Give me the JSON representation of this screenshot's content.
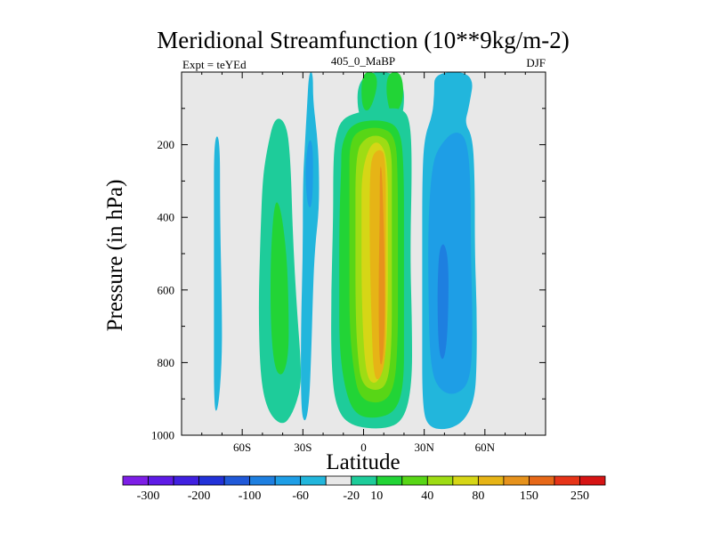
{
  "chart_data": {
    "type": "heatmap",
    "title": "Meridional Streamfunction (10**9kg/m-2)",
    "left_subtitle": "Expt = teYEd",
    "center_subtitle": "405_0_MaBP",
    "right_subtitle": "DJF",
    "xlabel": "Latitude",
    "ylabel": "Pressure (in hPa)",
    "xlim": [
      -90,
      90
    ],
    "ylim": [
      1000,
      0
    ],
    "x_ticks": [
      {
        "value": -60,
        "label": "60S"
      },
      {
        "value": -30,
        "label": "30S"
      },
      {
        "value": 0,
        "label": "0"
      },
      {
        "value": 30,
        "label": "30N"
      },
      {
        "value": 60,
        "label": "60N"
      }
    ],
    "y_ticks": [
      {
        "value": 200,
        "label": "200"
      },
      {
        "value": 400,
        "label": "400"
      },
      {
        "value": 600,
        "label": "600"
      },
      {
        "value": 800,
        "label": "800"
      },
      {
        "value": 1000,
        "label": "1000"
      }
    ],
    "background_color": "#e8e8e8",
    "colorbar": {
      "colors": [
        "#7d1ee6",
        "#5e1be6",
        "#4020e0",
        "#2232d8",
        "#2059d8",
        "#1e7fe0",
        "#1e9ee6",
        "#22b6dc",
        "#e8e8e8",
        "#1ecc9a",
        "#22d436",
        "#58d616",
        "#9edc14",
        "#d6d616",
        "#e6b416",
        "#e6921c",
        "#e66818",
        "#e63418",
        "#d61414"
      ],
      "labels": [
        {
          "after_index": 0,
          "label": "-300"
        },
        {
          "after_index": 2,
          "label": "-200"
        },
        {
          "after_index": 4,
          "label": "-100"
        },
        {
          "after_index": 6,
          "label": "-60"
        },
        {
          "after_index": 8,
          "label": "-20"
        },
        {
          "after_index": 9,
          "label": "10"
        },
        {
          "after_index": 11,
          "label": "40"
        },
        {
          "after_index": 13,
          "label": "80"
        },
        {
          "after_index": 15,
          "label": "150"
        },
        {
          "after_index": 17,
          "label": "250"
        }
      ]
    },
    "regions": [
      {
        "name": "band-70s",
        "level": -20,
        "color": "#22b6dc",
        "outline": [
          [
            -74,
            180
          ],
          [
            -71,
            175
          ],
          [
            -71,
            400
          ],
          [
            -70,
            650
          ],
          [
            -70,
            800
          ],
          [
            -72,
            935
          ],
          [
            -74,
            930
          ],
          [
            -74,
            700
          ],
          [
            -74,
            400
          ]
        ]
      },
      {
        "name": "cell-45s-outer",
        "level": 10,
        "color": "#1ecc9a",
        "outline": [
          [
            -48,
            220
          ],
          [
            -44,
            120
          ],
          [
            -38,
            140
          ],
          [
            -36,
            250
          ],
          [
            -35,
            450
          ],
          [
            -33,
            650
          ],
          [
            -31,
            800
          ],
          [
            -31,
            870
          ],
          [
            -35,
            940
          ],
          [
            -40,
            975
          ],
          [
            -47,
            940
          ],
          [
            -51,
            850
          ],
          [
            -52,
            650
          ],
          [
            -51,
            450
          ],
          [
            -50,
            300
          ]
        ]
      },
      {
        "name": "cell-45s-inner",
        "level": 40,
        "color": "#22d436",
        "outline": [
          [
            -44,
            350
          ],
          [
            -41,
            370
          ],
          [
            -38,
            500
          ],
          [
            -37,
            650
          ],
          [
            -37,
            780
          ],
          [
            -40,
            840
          ],
          [
            -44,
            820
          ],
          [
            -46,
            700
          ],
          [
            -46,
            500
          ]
        ]
      },
      {
        "name": "band-30s",
        "level": -20,
        "color": "#22b6dc",
        "outline": [
          [
            -27,
            0
          ],
          [
            -25,
            0
          ],
          [
            -25,
            80
          ],
          [
            -23,
            170
          ],
          [
            -22,
            260
          ],
          [
            -22,
            380
          ],
          [
            -24,
            480
          ],
          [
            -25,
            600
          ],
          [
            -26,
            800
          ],
          [
            -27,
            920
          ],
          [
            -29,
            970
          ],
          [
            -31,
            930
          ],
          [
            -31,
            700
          ],
          [
            -30,
            500
          ],
          [
            -30,
            300
          ],
          [
            -29,
            200
          ],
          [
            -28,
            100
          ]
        ]
      },
      {
        "name": "band-30s-core",
        "level": -60,
        "color": "#1e9ee6",
        "outline": [
          [
            -27,
            180
          ],
          [
            -25,
            200
          ],
          [
            -25,
            320
          ],
          [
            -26,
            380
          ],
          [
            -28,
            360
          ],
          [
            -29,
            260
          ]
        ]
      },
      {
        "name": "upper-0",
        "level": 10,
        "color": "#1ecc9a",
        "outline": [
          [
            -3,
            0
          ],
          [
            -3,
            140
          ],
          [
            9,
            150
          ],
          [
            20,
            140
          ],
          [
            20,
            0
          ]
        ]
      },
      {
        "name": "upper-1",
        "level": 40,
        "color": "#22d436",
        "outline": [
          [
            -1,
            0
          ],
          [
            -1,
            100
          ],
          [
            3,
            110
          ],
          [
            7,
            40
          ],
          [
            6,
            0
          ]
        ]
      },
      {
        "name": "upper-2",
        "level": 40,
        "color": "#22d436",
        "outline": [
          [
            12,
            0
          ],
          [
            11,
            60
          ],
          [
            14,
            130
          ],
          [
            20,
            80
          ],
          [
            19,
            0
          ]
        ]
      },
      {
        "name": "main-10",
        "level": 10,
        "color": "#1ecc9a",
        "outline": [
          [
            -14,
            180
          ],
          [
            -11,
            130
          ],
          [
            -3,
            110
          ],
          [
            10,
            100
          ],
          [
            19,
            100
          ],
          [
            23,
            130
          ],
          [
            24,
            250
          ],
          [
            23,
            500
          ],
          [
            24,
            700
          ],
          [
            24,
            860
          ],
          [
            20,
            960
          ],
          [
            10,
            985
          ],
          [
            -7,
            975
          ],
          [
            -14,
            920
          ],
          [
            -16,
            800
          ],
          [
            -16,
            600
          ],
          [
            -15,
            400
          ],
          [
            -15,
            250
          ]
        ]
      },
      {
        "name": "main-40",
        "level": 40,
        "color": "#22d436",
        "outline": [
          [
            -11,
            200
          ],
          [
            -6,
            140
          ],
          [
            8,
            130
          ],
          [
            18,
            150
          ],
          [
            20,
            260
          ],
          [
            20,
            500
          ],
          [
            20,
            700
          ],
          [
            20,
            860
          ],
          [
            16,
            935
          ],
          [
            6,
            955
          ],
          [
            -4,
            945
          ],
          [
            -9,
            880
          ],
          [
            -12,
            760
          ],
          [
            -12,
            600
          ],
          [
            -12,
            400
          ],
          [
            -11,
            260
          ]
        ]
      },
      {
        "name": "main-60",
        "level": 60,
        "color": "#58d616",
        "outline": [
          [
            -7,
            200
          ],
          [
            -3,
            160
          ],
          [
            8,
            150
          ],
          [
            16,
            175
          ],
          [
            17,
            300
          ],
          [
            17,
            550
          ],
          [
            17,
            750
          ],
          [
            15,
            880
          ],
          [
            8,
            915
          ],
          [
            -2,
            900
          ],
          [
            -5,
            820
          ],
          [
            -7,
            700
          ],
          [
            -7,
            500
          ],
          [
            -7,
            300
          ]
        ]
      },
      {
        "name": "main-80",
        "level": 80,
        "color": "#9edc14",
        "outline": [
          [
            -4,
            220
          ],
          [
            1,
            180
          ],
          [
            8,
            172
          ],
          [
            14,
            200
          ],
          [
            14,
            350
          ],
          [
            14,
            550
          ],
          [
            14,
            750
          ],
          [
            12,
            860
          ],
          [
            6,
            880
          ],
          [
            -1,
            860
          ],
          [
            -3,
            780
          ],
          [
            -4,
            650
          ],
          [
            -4,
            450
          ]
        ]
      },
      {
        "name": "main-100",
        "level": 100,
        "color": "#d6d616",
        "outline": [
          [
            -1,
            280
          ],
          [
            3,
            200
          ],
          [
            8,
            190
          ],
          [
            12,
            240
          ],
          [
            12,
            450
          ],
          [
            12,
            650
          ],
          [
            11,
            790
          ],
          [
            7,
            860
          ],
          [
            2,
            850
          ],
          [
            0,
            760
          ],
          [
            -1,
            600
          ],
          [
            -1,
            400
          ]
        ]
      },
      {
        "name": "main-150",
        "level": 150,
        "color": "#e6b416",
        "outline": [
          [
            4,
            230
          ],
          [
            8,
            210
          ],
          [
            11,
            230
          ],
          [
            11,
            450
          ],
          [
            11,
            650
          ],
          [
            11,
            790
          ],
          [
            8,
            850
          ],
          [
            5,
            840
          ],
          [
            4,
            700
          ],
          [
            3,
            500
          ],
          [
            3,
            300
          ]
        ]
      },
      {
        "name": "main-200",
        "level": 200,
        "color": "#e6921c",
        "outline": [
          [
            8,
            260
          ],
          [
            9,
            260
          ],
          [
            10,
            420
          ],
          [
            10.5,
            550
          ],
          [
            10.5,
            700
          ],
          [
            9.5,
            800
          ],
          [
            8,
            810
          ],
          [
            7.5,
            700
          ],
          [
            7.5,
            550
          ],
          [
            8,
            400
          ]
        ]
      },
      {
        "name": "band-nh-outer",
        "level": -20,
        "color": "#22b6dc",
        "outline": [
          [
            35,
            0
          ],
          [
            55,
            0
          ],
          [
            52,
            100
          ],
          [
            50,
            140
          ],
          [
            54,
            180
          ],
          [
            55,
            300
          ],
          [
            55,
            500
          ],
          [
            56,
            650
          ],
          [
            56,
            800
          ],
          [
            55,
            900
          ],
          [
            50,
            960
          ],
          [
            42,
            985
          ],
          [
            32,
            980
          ],
          [
            29,
            920
          ],
          [
            29,
            700
          ],
          [
            29,
            500
          ],
          [
            29,
            300
          ],
          [
            30,
            180
          ],
          [
            34,
            120
          ],
          [
            35,
            60
          ]
        ]
      },
      {
        "name": "band-nh-inner",
        "level": -60,
        "color": "#1e9ee6",
        "outline": [
          [
            34,
            250
          ],
          [
            38,
            200
          ],
          [
            45,
            160
          ],
          [
            51,
            180
          ],
          [
            53,
            300
          ],
          [
            53,
            500
          ],
          [
            54,
            700
          ],
          [
            53,
            850
          ],
          [
            46,
            890
          ],
          [
            38,
            880
          ],
          [
            33,
            820
          ],
          [
            32,
            600
          ],
          [
            32,
            400
          ]
        ]
      },
      {
        "name": "band-nh-core",
        "level": -100,
        "color": "#1e7fe0",
        "outline": [
          [
            38,
            480
          ],
          [
            40,
            470
          ],
          [
            42,
            520
          ],
          [
            42,
            650
          ],
          [
            41,
            760
          ],
          [
            39,
            800
          ],
          [
            37,
            760
          ],
          [
            36.5,
            620
          ],
          [
            37,
            520
          ]
        ]
      }
    ]
  }
}
